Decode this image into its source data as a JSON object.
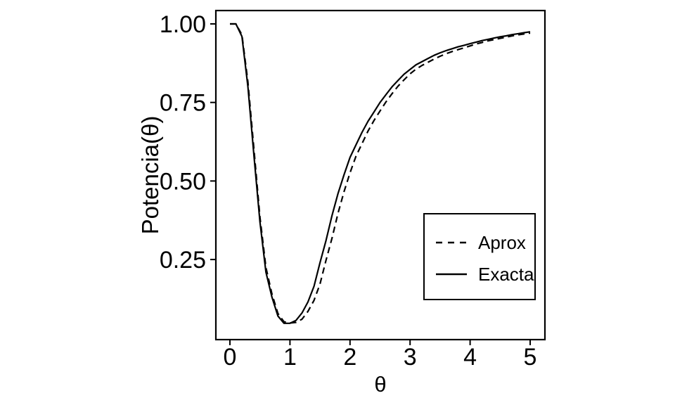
{
  "figure": {
    "background_color": "#ffffff",
    "foreground_color": "#000000"
  },
  "chart_data": {
    "type": "line",
    "title": "",
    "xlabel": "θ",
    "ylabel": "Potencia(θ)",
    "grid": false,
    "panel_border": true,
    "xlim": [
      0,
      5
    ],
    "ylim": [
      0,
      1.05
    ],
    "x_ticks": [
      {
        "label": "0",
        "value": 0
      },
      {
        "label": "1",
        "value": 1
      },
      {
        "label": "2",
        "value": 2
      },
      {
        "label": "3",
        "value": 3
      },
      {
        "label": "4",
        "value": 4
      },
      {
        "label": "5",
        "value": 5
      }
    ],
    "y_ticks": [
      {
        "label": "1.00",
        "value": 1.0
      },
      {
        "label": "0.75",
        "value": 0.75
      },
      {
        "label": "0.50",
        "value": 0.5
      },
      {
        "label": "0.25",
        "value": 0.25
      }
    ],
    "legend": {
      "position": "inside-right",
      "border": true
    },
    "x": [
      0,
      0.1,
      0.2,
      0.3,
      0.4,
      0.5,
      0.6,
      0.7,
      0.8,
      0.9,
      1.0,
      1.1,
      1.2,
      1.3,
      1.4,
      1.5,
      1.6,
      1.7,
      1.8,
      1.9,
      2.0,
      2.1,
      2.2,
      2.3,
      2.4,
      2.5,
      2.6,
      2.7,
      2.8,
      2.9,
      3.0,
      3.1,
      3.2,
      3.3,
      3.4,
      3.5,
      3.6,
      3.7,
      3.8,
      3.9,
      4.0,
      4.1,
      4.2,
      4.3,
      4.4,
      4.5,
      4.6,
      4.7,
      4.8,
      4.9,
      5.0
    ],
    "series": [
      {
        "name": "Aprox",
        "style": "dashed",
        "color": "#000000",
        "values": [
          1.0,
          1.0,
          0.965,
          0.815,
          0.6,
          0.385,
          0.225,
          0.14,
          0.078,
          0.052,
          0.048,
          0.05,
          0.06,
          0.085,
          0.12,
          0.172,
          0.247,
          0.318,
          0.397,
          0.466,
          0.526,
          0.579,
          0.619,
          0.659,
          0.693,
          0.723,
          0.752,
          0.778,
          0.802,
          0.822,
          0.841,
          0.856,
          0.868,
          0.878,
          0.888,
          0.897,
          0.905,
          0.912,
          0.918,
          0.924,
          0.93,
          0.936,
          0.941,
          0.946,
          0.95,
          0.954,
          0.958,
          0.962,
          0.965,
          0.968,
          0.971
        ]
      },
      {
        "name": "Exacta",
        "style": "solid",
        "color": "#000000",
        "values": [
          1.0,
          1.0,
          0.96,
          0.8,
          0.58,
          0.37,
          0.21,
          0.13,
          0.07,
          0.047,
          0.047,
          0.056,
          0.08,
          0.115,
          0.165,
          0.24,
          0.31,
          0.39,
          0.46,
          0.52,
          0.575,
          0.615,
          0.655,
          0.69,
          0.72,
          0.75,
          0.775,
          0.8,
          0.82,
          0.84,
          0.855,
          0.87,
          0.88,
          0.89,
          0.9,
          0.908,
          0.915,
          0.921,
          0.927,
          0.932,
          0.937,
          0.942,
          0.947,
          0.951,
          0.955,
          0.959,
          0.962,
          0.966,
          0.969,
          0.972,
          0.975
        ]
      }
    ]
  }
}
